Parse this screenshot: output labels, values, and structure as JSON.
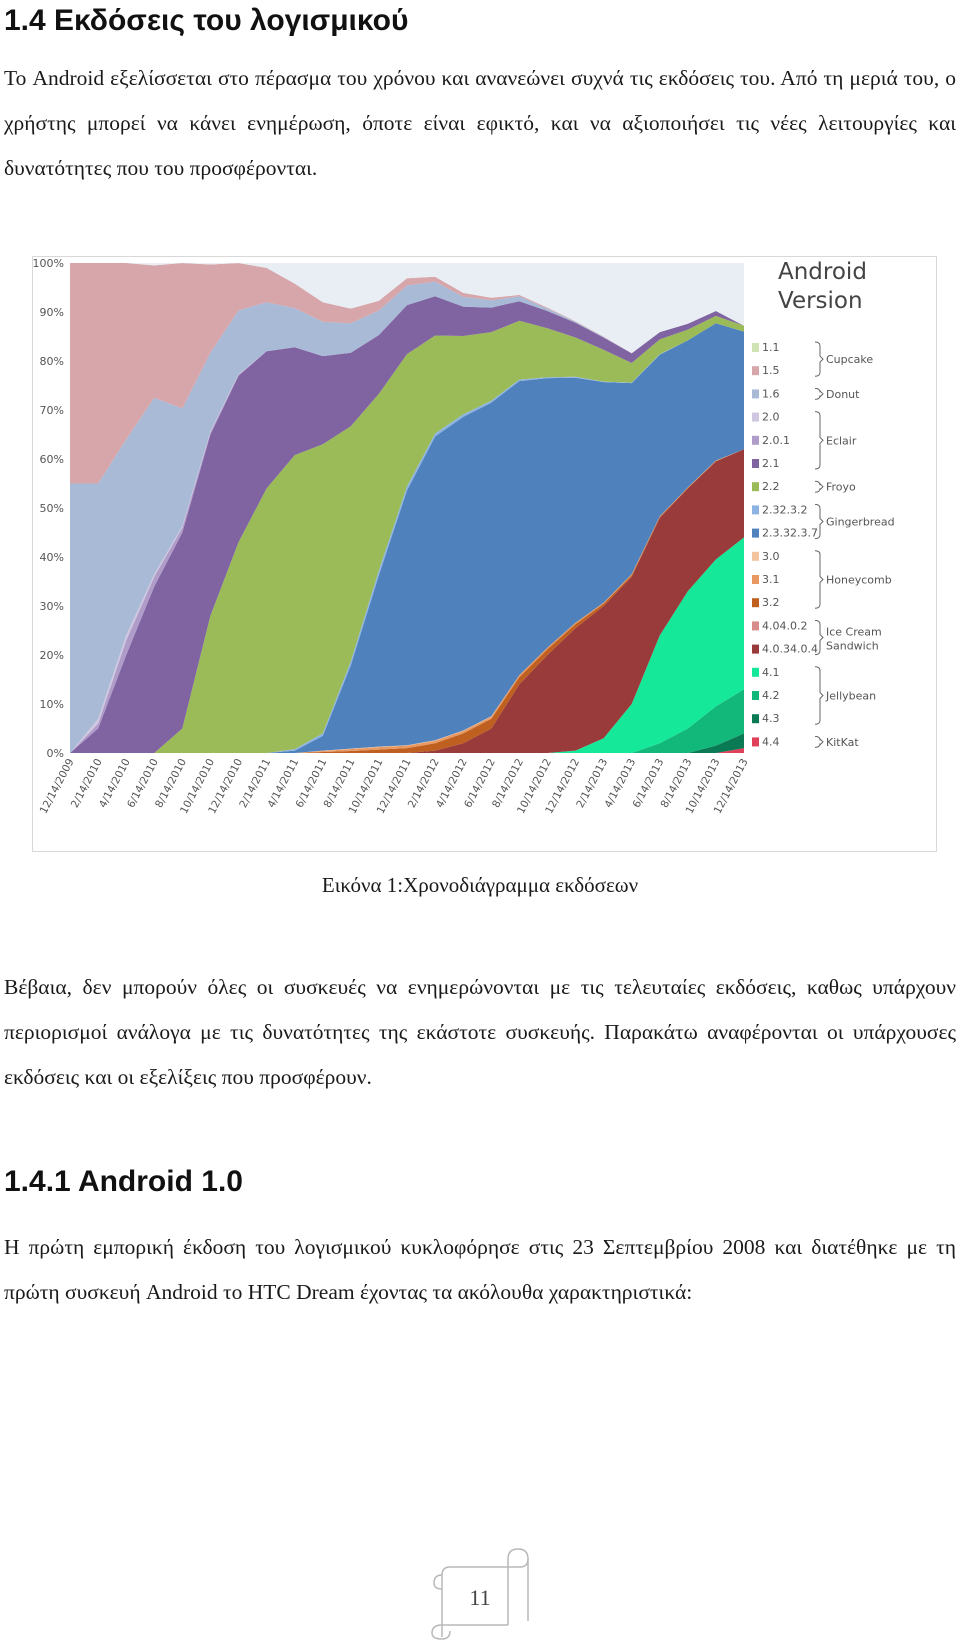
{
  "doc": {
    "section_title": "1.4 Εκδόσεις του λογισμικού",
    "intro_text": "Το Android εξελίσσεται στο πέρασμα του χρόνου και ανανεώνει συχνά τις εκδόσεις του. Από τη μεριά του, ο χρήστης μπορεί να κάνει ενημέρωση, όποτε είναι εφικτό, και να αξιοποιήσει τις νέες λειτουργίες και δυνατότητες που του προσφέρονται.",
    "caption": "Εικόνα 1:Χρονοδιάγραμμα εκδόσεων",
    "body_text": "Βέβαια, δεν μπορούν όλες οι συσκευές να ενημερώνονται με τις τελευταίες εκδόσεις, καθως υπάρχουν περιορισμοί ανάλογα με τις δυνατότητες της εκάστοτε συσκευής. Παρακάτω αναφέρονται οι υπάρχουσες εκδόσεις και οι εξελίξεις που προσφέρουν.",
    "subsection_title": "1.4.1 Android 1.0",
    "sub_text": "Η πρώτη εμπορική έκδοση του λογισμικού κυκλοφόρησε στις 23 Σεπτεμβρίου 2008 και διατέθηκε με τη πρώτη συσκευή Android το HTC Dream έχοντας τα ακόλουθα χαρακτηριστικά:",
    "page_number": "11"
  },
  "chart_data": {
    "type": "area",
    "stacked": true,
    "title": "Android Version",
    "ylim": [
      0,
      100
    ],
    "yticks": [
      "0%",
      "10%",
      "20%",
      "30%",
      "40%",
      "50%",
      "60%",
      "70%",
      "80%",
      "90%",
      "100%"
    ],
    "x_labels": [
      "12/14/2009",
      "2/14/2010",
      "4/14/2010",
      "6/14/2010",
      "8/14/2010",
      "10/14/2010",
      "12/14/2010",
      "2/14/2011",
      "4/14/2011",
      "6/14/2011",
      "8/14/2011",
      "10/14/2011",
      "12/14/2011",
      "2/14/2012",
      "4/14/2012",
      "6/14/2012",
      "8/14/2012",
      "10/14/2012",
      "12/14/2012",
      "2/14/2013",
      "4/14/2013",
      "6/14/2013",
      "8/14/2013",
      "10/14/2013",
      "12/14/2013"
    ],
    "legend_position": "right",
    "series": [
      {
        "name": "4.4",
        "color": "#e0405a",
        "values": [
          0,
          0,
          0,
          0,
          0,
          0,
          0,
          0,
          0,
          0,
          0,
          0,
          0,
          0,
          0,
          0,
          0,
          0,
          0,
          0,
          0,
          0,
          0,
          0,
          1
        ]
      },
      {
        "name": "4.3",
        "color": "#0a7a55",
        "values": [
          0,
          0,
          0,
          0,
          0,
          0,
          0,
          0,
          0,
          0,
          0,
          0,
          0,
          0,
          0,
          0,
          0,
          0,
          0,
          0,
          0,
          0,
          0,
          1.5,
          3
        ]
      },
      {
        "name": "4.2",
        "color": "#12b77a",
        "values": [
          0,
          0,
          0,
          0,
          0,
          0,
          0,
          0,
          0,
          0,
          0,
          0,
          0,
          0,
          0,
          0,
          0,
          0,
          0,
          0,
          0,
          2,
          5,
          8,
          9
        ]
      },
      {
        "name": "4.1",
        "color": "#16e89a",
        "values": [
          0,
          0,
          0,
          0,
          0,
          0,
          0,
          0,
          0,
          0,
          0,
          0,
          0,
          0,
          0,
          0,
          0,
          0,
          0.5,
          3,
          10,
          22,
          28,
          30,
          31
        ]
      },
      {
        "name": "4.0.3-4.0.4",
        "color": "#9a3b3b",
        "values": [
          0,
          0,
          0,
          0,
          0,
          0,
          0,
          0,
          0,
          0,
          0,
          0,
          0,
          0.5,
          2,
          5,
          14,
          20,
          25,
          27,
          26,
          24,
          21,
          20,
          18
        ]
      },
      {
        "name": "4.0.2",
        "color": "#d98a8a",
        "values": [
          0,
          0,
          0,
          0,
          0,
          0,
          0,
          0,
          0,
          0,
          0,
          0,
          0,
          0,
          0,
          0,
          0,
          0,
          0,
          0,
          0,
          0,
          0,
          0,
          0
        ]
      },
      {
        "name": "3.2",
        "color": "#c06020",
        "values": [
          0,
          0,
          0,
          0,
          0,
          0,
          0,
          0,
          0,
          0.2,
          0.4,
          0.7,
          1,
          1.5,
          2,
          2,
          1.5,
          1.2,
          0.8,
          0.5,
          0.3,
          0.2,
          0.1,
          0.1,
          0
        ]
      },
      {
        "name": "3.1",
        "color": "#e89860",
        "values": [
          0,
          0,
          0,
          0,
          0,
          0,
          0,
          0,
          0,
          0.2,
          0.4,
          0.5,
          0.5,
          0.5,
          0.5,
          0.4,
          0.4,
          0.3,
          0.3,
          0.2,
          0.2,
          0.1,
          0.1,
          0.1,
          0
        ]
      },
      {
        "name": "3.0",
        "color": "#f2c4a0",
        "values": [
          0,
          0,
          0,
          0,
          0,
          0,
          0,
          0,
          0,
          0.1,
          0.1,
          0.1,
          0.1,
          0.1,
          0.1,
          0.1,
          0,
          0,
          0,
          0,
          0,
          0,
          0,
          0,
          0
        ]
      },
      {
        "name": "2.3.3-2.3.7",
        "color": "#4f81bd",
        "values": [
          0,
          0,
          0,
          0,
          0,
          0,
          0,
          0,
          0.5,
          3,
          17,
          35,
          52,
          62,
          64,
          64,
          60,
          55,
          50,
          45,
          39,
          33,
          30,
          28,
          24
        ]
      },
      {
        "name": "2.3-2.3.2",
        "color": "#8db3e2",
        "values": [
          0,
          0,
          0,
          0,
          0,
          0,
          0,
          0,
          0.3,
          0.5,
          0.8,
          1,
          0.8,
          0.6,
          0.5,
          0.4,
          0.3,
          0.2,
          0.2,
          0.1,
          0.1,
          0.1,
          0,
          0,
          0
        ]
      },
      {
        "name": "2.2",
        "color": "#9bbb59",
        "values": [
          0,
          0,
          0,
          0,
          5,
          28,
          43,
          54,
          60,
          59,
          48,
          36,
          27,
          20,
          16,
          14,
          12,
          10,
          8,
          6.5,
          4,
          3,
          2.2,
          1.5,
          1.2
        ]
      },
      {
        "name": "2.1",
        "color": "#8064a2",
        "values": [
          0,
          5,
          20,
          34,
          40,
          37,
          34,
          28,
          22,
          18,
          15,
          12,
          10,
          8,
          6,
          5,
          4,
          3.5,
          3,
          2.5,
          2,
          1.5,
          1.2,
          1,
          0
        ]
      },
      {
        "name": "2.0.1",
        "color": "#b09cc8",
        "values": [
          0,
          1,
          3,
          2,
          1,
          0.5,
          0.2,
          0,
          0,
          0,
          0,
          0,
          0,
          0,
          0,
          0,
          0,
          0,
          0,
          0,
          0,
          0,
          0,
          0,
          0
        ]
      },
      {
        "name": "2.0",
        "color": "#cfc6e0",
        "values": [
          0,
          1,
          1,
          0.5,
          0.3,
          0.2,
          0.1,
          0,
          0,
          0,
          0,
          0,
          0,
          0,
          0,
          0,
          0,
          0,
          0,
          0,
          0,
          0,
          0,
          0,
          0
        ]
      },
      {
        "name": "1.6",
        "color": "#a9bad7",
        "values": [
          55,
          48,
          40,
          36,
          24,
          16,
          13,
          10,
          8,
          7,
          6,
          5,
          4,
          3,
          2,
          1.5,
          1,
          0.5,
          0.2,
          0.1,
          0,
          0,
          0,
          0,
          0
        ]
      },
      {
        "name": "1.5",
        "color": "#d6a6aa",
        "values": [
          45,
          45,
          36,
          27,
          30,
          18,
          10,
          7,
          5,
          4,
          3,
          2,
          1.5,
          1,
          0.8,
          0.5,
          0.3,
          0.2,
          0.1,
          0.1,
          0,
          0,
          0,
          0,
          0
        ]
      },
      {
        "name": "1.1",
        "color": "#cfe3b5",
        "values": [
          0,
          0,
          0,
          0,
          0,
          0,
          0,
          0,
          0,
          0,
          0,
          0,
          0,
          0,
          0,
          0,
          0,
          0,
          0,
          0,
          0,
          0,
          0,
          0,
          0
        ]
      }
    ],
    "legend": [
      {
        "label": "1.1",
        "color": "#cfe3b5"
      },
      {
        "label": "1.5",
        "color": "#d6a6aa"
      },
      {
        "label": "1.6",
        "color": "#a9bad7"
      },
      {
        "label": "2.0",
        "color": "#cfc6e0"
      },
      {
        "label": "2.0.1",
        "color": "#b09cc8"
      },
      {
        "label": "2.1",
        "color": "#8064a2"
      },
      {
        "label": "2.2",
        "color": "#9bbb59"
      },
      {
        "label": "2.32.3.2",
        "color": "#8db3e2"
      },
      {
        "label": "2.3.32.3.7",
        "color": "#4f81bd"
      },
      {
        "label": "3.0",
        "color": "#f2c4a0"
      },
      {
        "label": "3.1",
        "color": "#e89860"
      },
      {
        "label": "3.2",
        "color": "#c06020"
      },
      {
        "label": "4.04.0.2",
        "color": "#d98a8a"
      },
      {
        "label": "4.0.34.0.4",
        "color": "#9a3b3b"
      },
      {
        "label": "4.1",
        "color": "#16e89a"
      },
      {
        "label": "4.2",
        "color": "#12b77a"
      },
      {
        "label": "4.3",
        "color": "#0a7a55"
      },
      {
        "label": "4.4",
        "color": "#e0405a"
      }
    ],
    "groups": [
      {
        "label": "Cupcake"
      },
      {
        "label": "Donut"
      },
      {
        "label": "Eclair"
      },
      {
        "label": "Froyo"
      },
      {
        "label": "Gingerbread"
      },
      {
        "label": "Honeycomb"
      },
      {
        "label": "Ice Cream Sandwich"
      },
      {
        "label": "Jellybean"
      },
      {
        "label": "KitKat"
      }
    ],
    "title_lines": [
      "Android",
      "Version"
    ]
  }
}
